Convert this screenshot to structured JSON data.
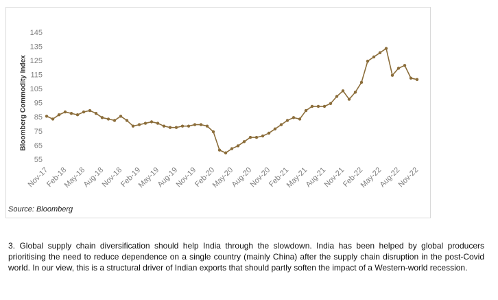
{
  "chart_data": {
    "type": "line",
    "y_label": "Bloomberg Commodity Index",
    "categories": [
      "Nov-17",
      null,
      null,
      "Feb-18",
      null,
      null,
      "May-18",
      null,
      null,
      "Aug-18",
      null,
      null,
      "Nov-18",
      null,
      null,
      "Feb-19",
      null,
      null,
      "May-19",
      null,
      null,
      "Aug-19",
      null,
      null,
      "Nov-19",
      null,
      null,
      "Feb-20",
      null,
      null,
      "May-20",
      null,
      null,
      "Aug-20",
      null,
      null,
      "Nov-20",
      null,
      null,
      "Feb-21",
      null,
      null,
      "May-21",
      null,
      null,
      "Aug-21",
      null,
      null,
      "Nov-21",
      null,
      null,
      "Feb-22",
      null,
      null,
      "May-22",
      null,
      null,
      "Aug-22",
      null,
      null,
      "Nov-22"
    ],
    "series": [
      {
        "name": "Bloomberg Commodity Index",
        "color": "#8b6d3a",
        "values": [
          86,
          84,
          87,
          89,
          88,
          87,
          89,
          90,
          88,
          85,
          84,
          83,
          86,
          83,
          79,
          80,
          81,
          82,
          81,
          79,
          78,
          78,
          79,
          79,
          80,
          80,
          79,
          75,
          62,
          60,
          63,
          65,
          68,
          71,
          71,
          72,
          74,
          77,
          80,
          83,
          85,
          84,
          90,
          93,
          93,
          93,
          95,
          100,
          104,
          98,
          103,
          110,
          125,
          128,
          131,
          134,
          115,
          120,
          122,
          113,
          112
        ]
      }
    ],
    "ylim": [
      55,
      145
    ],
    "yticks": [
      55,
      65,
      75,
      85,
      95,
      105,
      115,
      125,
      135,
      145
    ],
    "grid": false
  },
  "source": "Source: Bloomberg",
  "paragraph": "3. Global supply chain diversification should help India through the slowdown. India has been helped by global producers prioritising the need to reduce dependence on a single country (mainly China) after the supply chain disruption in the post-Covid world. In our view, this is a structural driver of Indian exports that should partly soften the impact of a Western-world recession."
}
